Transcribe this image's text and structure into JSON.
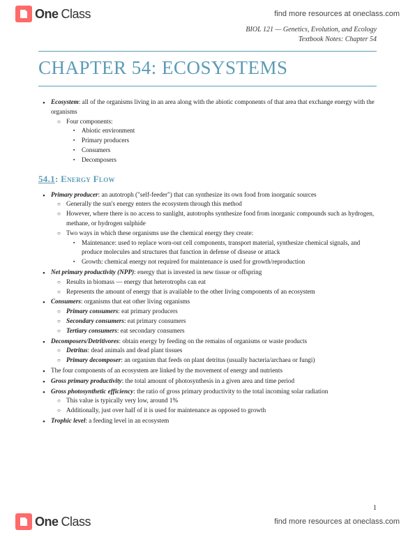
{
  "brand": {
    "part1": "One",
    "part2": "Class",
    "link": "find more resources at oneclass.com"
  },
  "header": {
    "course": "BIOL 121 — Genetics, Evolution, and Ecology",
    "subtitle": "Textbook Notes: Chapter 54"
  },
  "chapter_title": "CHAPTER 54: ECOSYSTEMS",
  "intro": {
    "term": "Ecosystem",
    "def": ": all of the organisms living in an area along with the abiotic components of that area that exchange energy with the organisms",
    "components_label": "Four components:",
    "components": [
      "Abiotic environment",
      "Primary producers",
      "Consumers",
      "Decomposers"
    ]
  },
  "section": {
    "num": "54.1",
    "title": ": Energy Flow"
  },
  "items": {
    "pp_term": "Primary producer",
    "pp_def": ": an autotroph (\"self-feeder\") that can synthesize its own food from inorganic sources",
    "pp_sub1": "Generally the sun's energy enters the ecosystem through this method",
    "pp_sub2": "However, where there is no access to sunlight, autotrophs synthesize food from inorganic compounds such as hydrogen, methane, or hydrogen sulphide",
    "pp_sub3": "Two ways in which these organisms use the chemical energy they create:",
    "pp_maint": "Maintenance: used to replace worn-out cell components, transport material, synthesize chemical signals, and produce molecules and structures that function in defense of disease or attack",
    "pp_growth": "Growth: chemical energy not required for maintenance is used for growth/reproduction",
    "npp_term": "Net primary productivity (NPP)",
    "npp_def": ": energy that is invested in new tissue or offspring",
    "npp_sub1": "Results in biomass — energy that heterotrophs can eat",
    "npp_sub2": "Represents the amount of energy that is available to the other living components of an ecosystem",
    "cons_term": "Consumers",
    "cons_def": ": organisms that eat other living organisms",
    "cons_p_term": "Primary consumers",
    "cons_p_def": ": eat primary producers",
    "cons_s_term": "Secondary consumers",
    "cons_s_def": ": eat primary consumers",
    "cons_t_term": "Tertiary consumers",
    "cons_t_def": ": eat secondary consumers",
    "dec_term": "Decomposers/Detritivores",
    "dec_def": ": obtain energy by feeding on the remains of organisms or waste products",
    "det_term": "Detritus",
    "det_def": ": dead animals and dead plant tissues",
    "pdec_term": "Primary decomposer",
    "pdec_def": ": an organism that feeds on plant detritus (usually bacteria/archaea or fungi)",
    "link_text": "The four components of an ecosystem are linked by the movement of energy and nutrients",
    "gpp_term": "Gross primary productivity",
    "gpp_def": ": the total amount of photosynthesis in a given area and time period",
    "gpe_term": "Gross photosynthetic efficiency",
    "gpe_def": ": the ratio of gross primary productivity to the total incoming solar radiation",
    "gpe_sub1": "This value is typically very low, around 1%",
    "gpe_sub2": "Additionally, just over half of it is used for maintenance as opposed to growth",
    "tl_term": "Trophic level",
    "tl_def": ": a feeding level in an ecosystem"
  },
  "page_number": "1",
  "colors": {
    "accent": "#5b9bb5",
    "text": "#222222",
    "brand_icon": "#ff6a6a"
  }
}
